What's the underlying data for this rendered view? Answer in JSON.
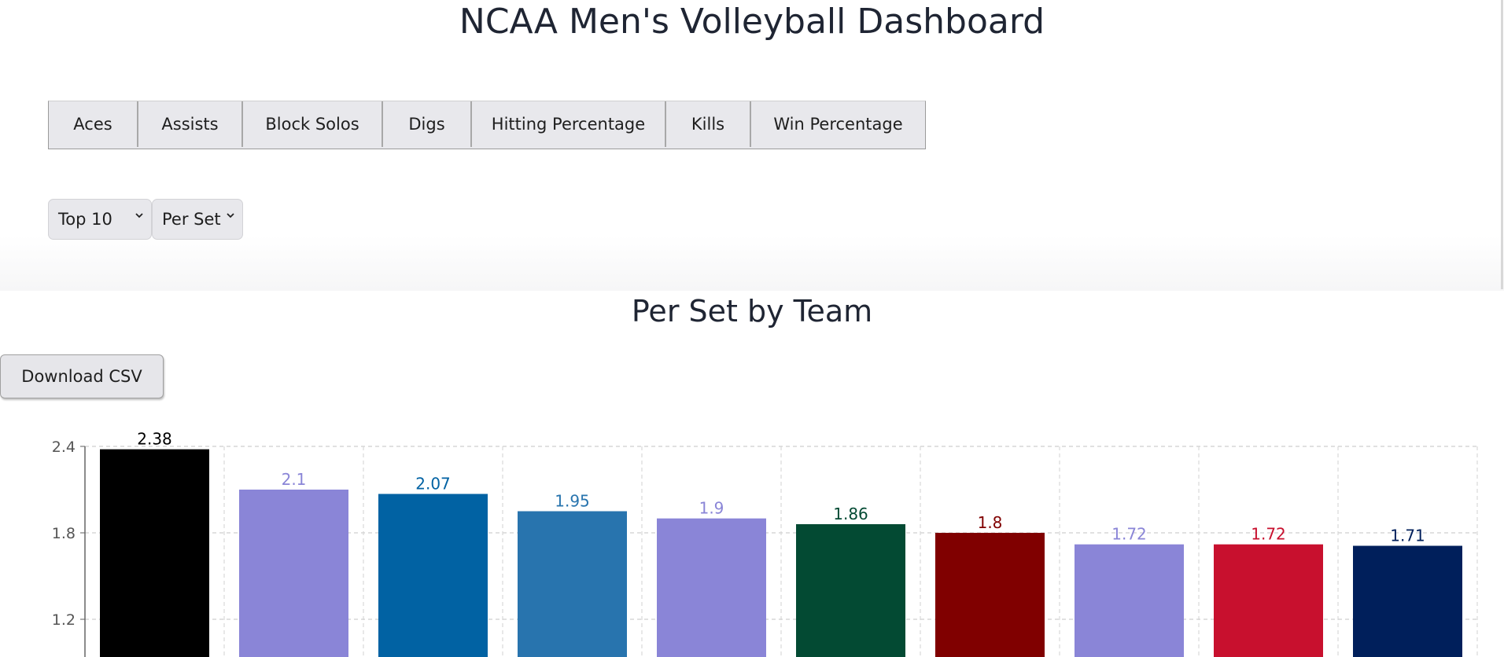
{
  "page": {
    "title": "NCAA Men's Volleyball Dashboard"
  },
  "tabs": [
    "Aces",
    "Assists",
    "Block Solos",
    "Digs",
    "Hitting Percentage",
    "Kills",
    "Win Percentage"
  ],
  "filters": {
    "count_select": "Top 10",
    "stat_select": "Per Set"
  },
  "chart_section": {
    "title": "Per Set by Team",
    "download_label": "Download CSV"
  },
  "chart_data": {
    "type": "bar",
    "title": "Per Set by Team",
    "values": [
      2.38,
      2.1,
      2.07,
      1.95,
      1.9,
      1.86,
      1.8,
      1.72,
      1.72,
      1.71
    ],
    "value_labels": [
      "2.38",
      "2.1",
      "2.07",
      "1.95",
      "1.9",
      "1.86",
      "1.8",
      "1.72",
      "1.72",
      "1.71"
    ],
    "bar_colors": [
      "#000000",
      "#8a85d7",
      "#0162a3",
      "#2874ae",
      "#8a85d7",
      "#034a33",
      "#800000",
      "#8a85d7",
      "#c8102e",
      "#001f5b"
    ],
    "label_colors": [
      "#000000",
      "#8a85d7",
      "#0162a3",
      "#2874ae",
      "#8a85d7",
      "#034a33",
      "#800000",
      "#8a85d7",
      "#c8102e",
      "#001f5b"
    ],
    "y_ticks": [
      2.4,
      1.8,
      1.2
    ],
    "y_tick_labels": [
      "2.4",
      "1.8",
      "1.2"
    ],
    "ylim_visible": [
      1.05,
      2.55
    ],
    "grid": true
  }
}
